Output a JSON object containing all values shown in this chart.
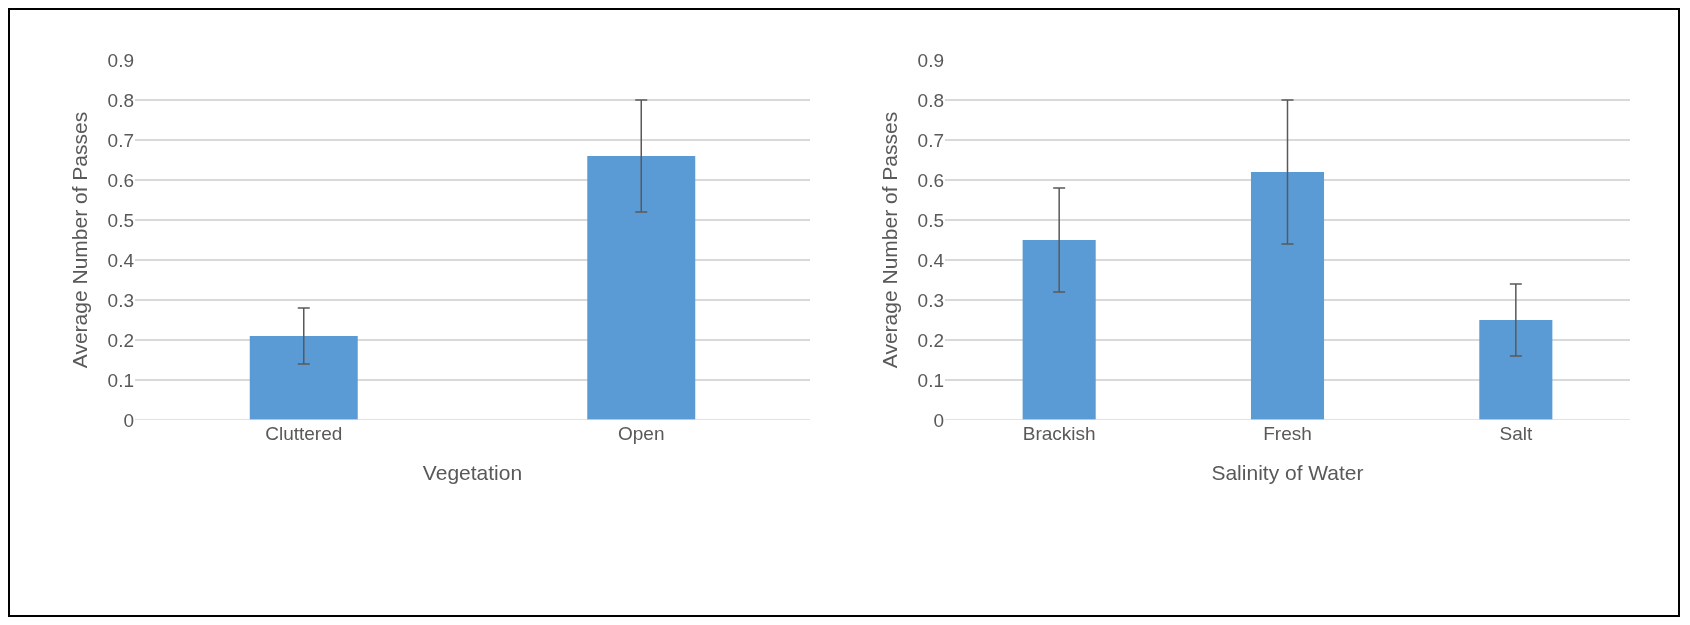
{
  "chart_data": [
    {
      "type": "bar",
      "xlabel": "Vegetation",
      "ylabel": "Average Number of Passes",
      "categories": [
        "Cluttered",
        "Open"
      ],
      "values": [
        0.21,
        0.66
      ],
      "errors": [
        [
          0.14,
          0.28
        ],
        [
          0.52,
          0.8
        ]
      ],
      "color": "#5b9bd5",
      "ylim": [
        0,
        0.9
      ],
      "yticks": [
        0,
        0.1,
        0.2,
        0.3,
        0.4,
        0.5,
        0.6,
        0.7,
        0.8,
        0.9
      ],
      "grid": "y"
    },
    {
      "type": "bar",
      "xlabel": "Salinity of Water",
      "ylabel": "Average Number of Passes",
      "categories": [
        "Brackish",
        "Fresh",
        "Salt"
      ],
      "values": [
        0.45,
        0.62,
        0.25
      ],
      "errors": [
        [
          0.32,
          0.58
        ],
        [
          0.44,
          0.8
        ],
        [
          0.16,
          0.34
        ]
      ],
      "color": "#5b9bd5",
      "ylim": [
        0,
        0.9
      ],
      "yticks": [
        0,
        0.1,
        0.2,
        0.3,
        0.4,
        0.5,
        0.6,
        0.7,
        0.8,
        0.9
      ],
      "grid": "y"
    }
  ]
}
